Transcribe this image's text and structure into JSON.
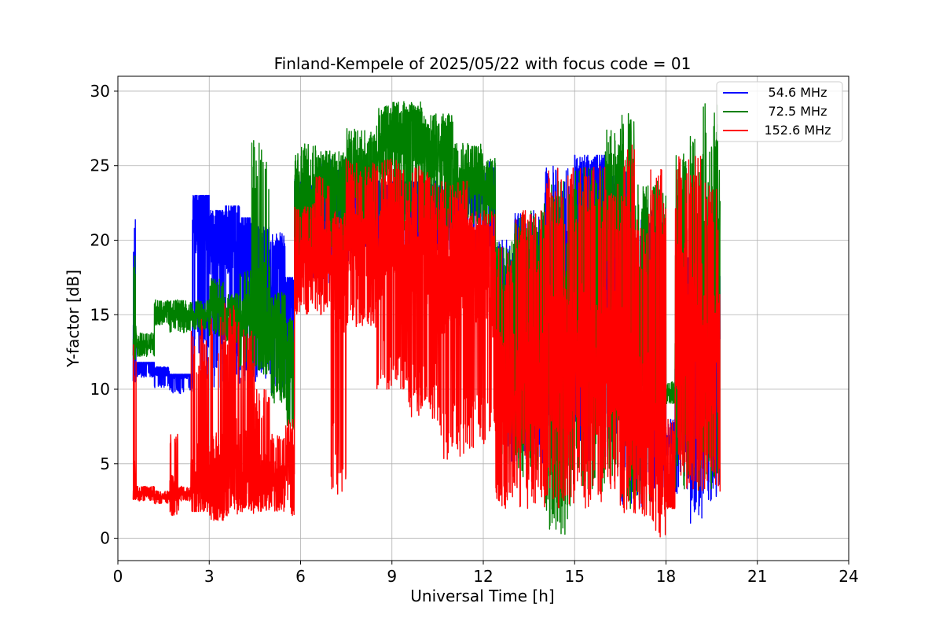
{
  "chart_data": {
    "type": "line",
    "title": "Finland-Kempele of 2025/05/22 with focus code = 01",
    "xlabel": "Universal Time [h]",
    "ylabel": "Y-factor [dB]",
    "xlim": [
      0,
      24
    ],
    "ylim": [
      -1.5,
      31
    ],
    "xticks": [
      0,
      3,
      6,
      9,
      12,
      15,
      18,
      21,
      24
    ],
    "yticks": [
      0,
      5,
      10,
      15,
      20,
      25,
      30
    ],
    "grid": true,
    "legend_position": "top-right",
    "series": [
      {
        "name": "54.6 MHz",
        "color": "#0000ff",
        "segments": [
          [
            0.5,
            22.6,
            10.5,
            11.6
          ],
          [
            0.6,
            11.8,
            10.8,
            11.8
          ],
          [
            1.2,
            11.5,
            10.1,
            11.2
          ],
          [
            1.7,
            11.0,
            9.7,
            11.0
          ],
          [
            2.4,
            11.0,
            9.8,
            10.9
          ],
          [
            2.45,
            23.0,
            9.8,
            21.8
          ],
          [
            3.0,
            22.0,
            10.0,
            20.0
          ],
          [
            3.5,
            22.3,
            10.2,
            20.5
          ],
          [
            4.0,
            21.5,
            10.5,
            20.0
          ],
          [
            4.5,
            21.0,
            10.0,
            18.0
          ],
          [
            5.0,
            20.5,
            9.5,
            17.5
          ],
          [
            5.5,
            17.5,
            7.5,
            16.0
          ],
          [
            5.8,
            24.2,
            17.0,
            22.0
          ],
          [
            6.5,
            25.5,
            17.0,
            23.0
          ],
          [
            7.5,
            25.0,
            18.0,
            23.5
          ],
          [
            8.5,
            24.0,
            18.5,
            22.5
          ],
          [
            9.5,
            24.0,
            19.0,
            22.5
          ],
          [
            10.5,
            23.8,
            18.5,
            22.0
          ],
          [
            11.5,
            24.8,
            18.5,
            23.0
          ],
          [
            12.2,
            25.5,
            18.0,
            23.5
          ],
          [
            12.4,
            20.0,
            5.0,
            15.0
          ],
          [
            13.0,
            22.0,
            5.0,
            16.0
          ],
          [
            14.0,
            25.0,
            4.0,
            18.0
          ],
          [
            15.0,
            25.7,
            5.0,
            22.0
          ],
          [
            16.0,
            25.5,
            5.0,
            20.0
          ],
          [
            16.5,
            25.0,
            2.0,
            17.0
          ],
          [
            17.0,
            22.0,
            2.0,
            14.0
          ],
          [
            17.5,
            22.0,
            3.0,
            14.0
          ],
          [
            18.0,
            8.0,
            5.5,
            6.5
          ],
          [
            18.3,
            20.0,
            3.0,
            12.0
          ],
          [
            18.8,
            21.0,
            0.0,
            10.0
          ],
          [
            19.2,
            21.0,
            2.5,
            12.0
          ],
          [
            19.7,
            22.0,
            3.0,
            15.0
          ]
        ]
      },
      {
        "name": "72.5 MHz",
        "color": "#008000",
        "segments": [
          [
            0.5,
            19.0,
            12.0,
            13.0
          ],
          [
            0.6,
            13.8,
            12.2,
            13.0
          ],
          [
            1.2,
            16.0,
            14.3,
            15.2
          ],
          [
            1.7,
            16.0,
            13.8,
            15.0
          ],
          [
            2.4,
            16.0,
            14.0,
            15.0
          ],
          [
            3.0,
            17.5,
            13.5,
            15.5
          ],
          [
            3.5,
            16.5,
            13.0,
            15.0
          ],
          [
            4.0,
            18.0,
            11.5,
            15.0
          ],
          [
            4.4,
            26.8,
            11.0,
            15.0
          ],
          [
            5.0,
            16.5,
            9.0,
            14.5
          ],
          [
            5.5,
            15.0,
            7.0,
            12.0
          ],
          [
            5.8,
            26.5,
            18.0,
            23.0
          ],
          [
            6.5,
            26.0,
            19.0,
            23.5
          ],
          [
            7.5,
            27.5,
            20.0,
            24.5
          ],
          [
            8.5,
            29.0,
            20.0,
            26.0
          ],
          [
            9.0,
            29.3,
            20.0,
            27.0
          ],
          [
            10.0,
            28.5,
            20.0,
            26.0
          ],
          [
            11.0,
            26.5,
            21.0,
            24.0
          ],
          [
            12.0,
            25.5,
            21.0,
            23.0
          ],
          [
            12.4,
            20.0,
            5.0,
            14.0
          ],
          [
            13.0,
            22.0,
            4.0,
            15.0
          ],
          [
            14.0,
            24.0,
            0.2,
            14.0
          ],
          [
            14.4,
            24.0,
            0.0,
            15.0
          ],
          [
            15.0,
            25.0,
            3.0,
            18.0
          ],
          [
            16.0,
            27.5,
            4.0,
            20.0
          ],
          [
            16.5,
            28.5,
            2.0,
            18.0
          ],
          [
            17.0,
            24.0,
            2.0,
            15.0
          ],
          [
            17.5,
            24.0,
            4.0,
            15.0
          ],
          [
            18.0,
            10.5,
            9.0,
            9.8
          ],
          [
            18.3,
            26.0,
            3.0,
            16.0
          ],
          [
            18.8,
            27.0,
            3.0,
            17.0
          ],
          [
            19.2,
            29.5,
            3.0,
            18.0
          ],
          [
            19.7,
            25.0,
            3.0,
            18.0
          ]
        ]
      },
      {
        "name": "152.6 MHz",
        "color": "#ff0000",
        "segments": [
          [
            0.5,
            14.2,
            2.6,
            3.0
          ],
          [
            0.6,
            3.5,
            2.5,
            3.0
          ],
          [
            1.2,
            3.2,
            2.3,
            2.8
          ],
          [
            1.7,
            7.0,
            1.5,
            3.0
          ],
          [
            2.0,
            3.5,
            2.5,
            3.0
          ],
          [
            2.4,
            14.8,
            1.8,
            3.5
          ],
          [
            3.0,
            15.0,
            1.2,
            4.0
          ],
          [
            3.5,
            15.8,
            1.5,
            5.0
          ],
          [
            4.0,
            14.0,
            1.5,
            4.5
          ],
          [
            4.5,
            10.0,
            1.8,
            4.0
          ],
          [
            5.0,
            7.0,
            1.8,
            4.0
          ],
          [
            5.5,
            8.0,
            1.5,
            5.0
          ],
          [
            5.8,
            22.5,
            15.0,
            18.5
          ],
          [
            6.5,
            24.5,
            15.0,
            19.5
          ],
          [
            7.0,
            22.0,
            2.9,
            18.0
          ],
          [
            7.5,
            25.5,
            14.0,
            20.0
          ],
          [
            8.5,
            25.5,
            10.0,
            19.5
          ],
          [
            9.5,
            25.0,
            8.0,
            19.0
          ],
          [
            10.5,
            24.0,
            5.0,
            18.0
          ],
          [
            11.5,
            22.0,
            6.0,
            18.0
          ],
          [
            12.2,
            22.0,
            6.0,
            17.0
          ],
          [
            12.4,
            20.0,
            2.0,
            10.0
          ],
          [
            13.0,
            22.0,
            2.0,
            10.0
          ],
          [
            14.0,
            25.0,
            2.0,
            12.0
          ],
          [
            15.0,
            25.0,
            2.0,
            12.0
          ],
          [
            16.0,
            24.0,
            3.0,
            12.0
          ],
          [
            16.5,
            26.5,
            1.5,
            10.0
          ],
          [
            17.0,
            22.0,
            1.5,
            8.0
          ],
          [
            17.5,
            25.5,
            0.0,
            8.0
          ],
          [
            18.0,
            8.0,
            2.0,
            3.0
          ],
          [
            18.3,
            25.7,
            3.0,
            15.0
          ],
          [
            18.8,
            25.7,
            3.0,
            14.0
          ],
          [
            19.2,
            24.0,
            2.5,
            12.0
          ],
          [
            19.7,
            22.5,
            2.8,
            12.0
          ]
        ]
      }
    ]
  }
}
